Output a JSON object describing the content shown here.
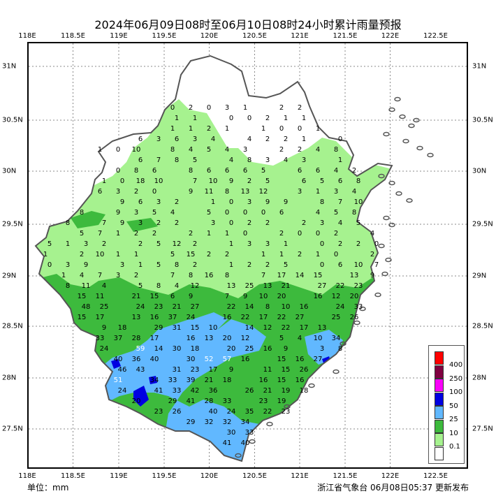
{
  "title": "2024年06月09日08时至06月10日08时24小时累计雨量预报",
  "lon_ticks": [
    "118E",
    "118.5E",
    "119E",
    "119.5E",
    "120E",
    "120.5E",
    "121E",
    "121.5E",
    "122E",
    "122.5E"
  ],
  "lat_ticks": [
    "31N",
    "30.5N",
    "30N",
    "29.5N",
    "29N",
    "28.5N",
    "28N",
    "27.5N"
  ],
  "unit_label": "单位：mm",
  "issuer": "浙江省气象台 06月08日05:37 更新发布",
  "colors": {
    "land": "#ffffff",
    "c01": "#a6f28f",
    "c10": "#3dba3d",
    "c25": "#61b8ff",
    "c50": "#0000e1",
    "c100": "#fa00fa",
    "c250": "#800040",
    "c400": "#ff0000",
    "boundary": "#555555",
    "grid": "#888888"
  },
  "legend": [
    {
      "label": "400",
      "color": "#ff0000"
    },
    {
      "label": "250",
      "color": "#800040"
    },
    {
      "label": "100",
      "color": "#fa00fa"
    },
    {
      "label": "50",
      "color": "#0000e1"
    },
    {
      "label": "25",
      "color": "#61b8ff"
    },
    {
      "label": "10",
      "color": "#3dba3d"
    },
    {
      "label": "0.1",
      "color": "#a6f28f"
    },
    {
      "label": "",
      "color": "#ffffff"
    }
  ],
  "station_values": [
    "0",
    "2",
    "0",
    "3",
    "1",
    "2",
    "2",
    "1",
    "1",
    "0",
    "0",
    "2",
    "1",
    "1",
    "1",
    "1",
    "2",
    "1",
    "1",
    "0",
    "0",
    "1",
    "6",
    "3",
    "6",
    "3",
    "4",
    "4",
    "2",
    "2",
    "1",
    "0",
    "1",
    "0",
    "10",
    "8",
    "4",
    "5",
    "4",
    "3",
    "2",
    "2",
    "4",
    "8",
    "6",
    "7",
    "8",
    "5",
    "4",
    "8",
    "3",
    "4",
    "3",
    "1",
    "0",
    "8",
    "6",
    "8",
    "6",
    "6",
    "6",
    "5",
    "6",
    "6",
    "4",
    "2",
    "1",
    "0",
    "18",
    "10",
    "7",
    "10",
    "9",
    "2",
    "5",
    "6",
    "5",
    "6",
    "8",
    "6",
    "3",
    "2",
    "0",
    "9",
    "11",
    "8",
    "13",
    "12",
    "3",
    "1",
    "3",
    "4",
    "9",
    "6",
    "3",
    "2",
    "1",
    "0",
    "3",
    "9",
    "9",
    "8",
    "7",
    "10",
    "8",
    "9",
    "3",
    "5",
    "4",
    "5",
    "0",
    "0",
    "0",
    "6",
    "4",
    "5",
    "8",
    "8",
    "7",
    "9",
    "3",
    "2",
    "2",
    "3",
    "0",
    "2",
    "2",
    "2",
    "3",
    "4",
    "5",
    "5",
    "7",
    "1",
    "2",
    "2",
    "2",
    "1",
    "1",
    "0",
    "2",
    "0",
    "0",
    "2",
    "4",
    "5",
    "1",
    "3",
    "2",
    "2",
    "5",
    "12",
    "2",
    "1",
    "3",
    "3",
    "1",
    "0",
    "2",
    "2",
    "0",
    "1",
    "2",
    "10",
    "1",
    "1",
    "5",
    "15",
    "2",
    "2",
    "1",
    "1",
    "2",
    "1",
    "0",
    "2",
    "0",
    "3",
    "9",
    "3",
    "1",
    "5",
    "8",
    "2",
    "1",
    "2",
    "2",
    "5",
    "0",
    "6",
    "10",
    "7",
    "1",
    "4",
    "7",
    "3",
    "2",
    "7",
    "8",
    "16",
    "8",
    "7",
    "17",
    "14",
    "15",
    "13",
    "9",
    "8",
    "11",
    "4",
    "5",
    "8",
    "4",
    "12",
    "13",
    "25",
    "13",
    "21",
    "27",
    "22",
    "23",
    "15",
    "11",
    "21",
    "15",
    "6",
    "9",
    "7",
    "9",
    "10",
    "20",
    "16",
    "12",
    "20",
    "48",
    "25",
    "24",
    "23",
    "21",
    "27",
    "22",
    "14",
    "8",
    "10",
    "16",
    "24",
    "33",
    "15",
    "17",
    "13",
    "16",
    "37",
    "24",
    "16",
    "22",
    "17",
    "22",
    "27",
    "25",
    "26",
    "9",
    "18",
    "29",
    "31",
    "15",
    "10",
    "14",
    "12",
    "22",
    "17",
    "13",
    "33",
    "37",
    "28",
    "17",
    "16",
    "13",
    "20",
    "12",
    "5",
    "4",
    "10",
    "34",
    "24",
    "59",
    "14",
    "30",
    "18",
    "20",
    "25",
    "16",
    "9",
    "3",
    "8",
    "40",
    "36",
    "40",
    "30",
    "52",
    "57",
    "16",
    "15",
    "16",
    "27",
    "46",
    "43",
    "31",
    "23",
    "17",
    "9",
    "11",
    "15",
    "26",
    "51",
    "34",
    "33",
    "39",
    "21",
    "18",
    "16",
    "15",
    "16",
    "24",
    "41",
    "33",
    "42",
    "36",
    "26",
    "21",
    "19",
    "18",
    "20",
    "29",
    "41",
    "28",
    "33",
    "23",
    "19",
    "23",
    "26",
    "40",
    "24",
    "35",
    "22",
    "23",
    "29",
    "32",
    "32",
    "34",
    "30",
    "33",
    "41",
    "40"
  ]
}
